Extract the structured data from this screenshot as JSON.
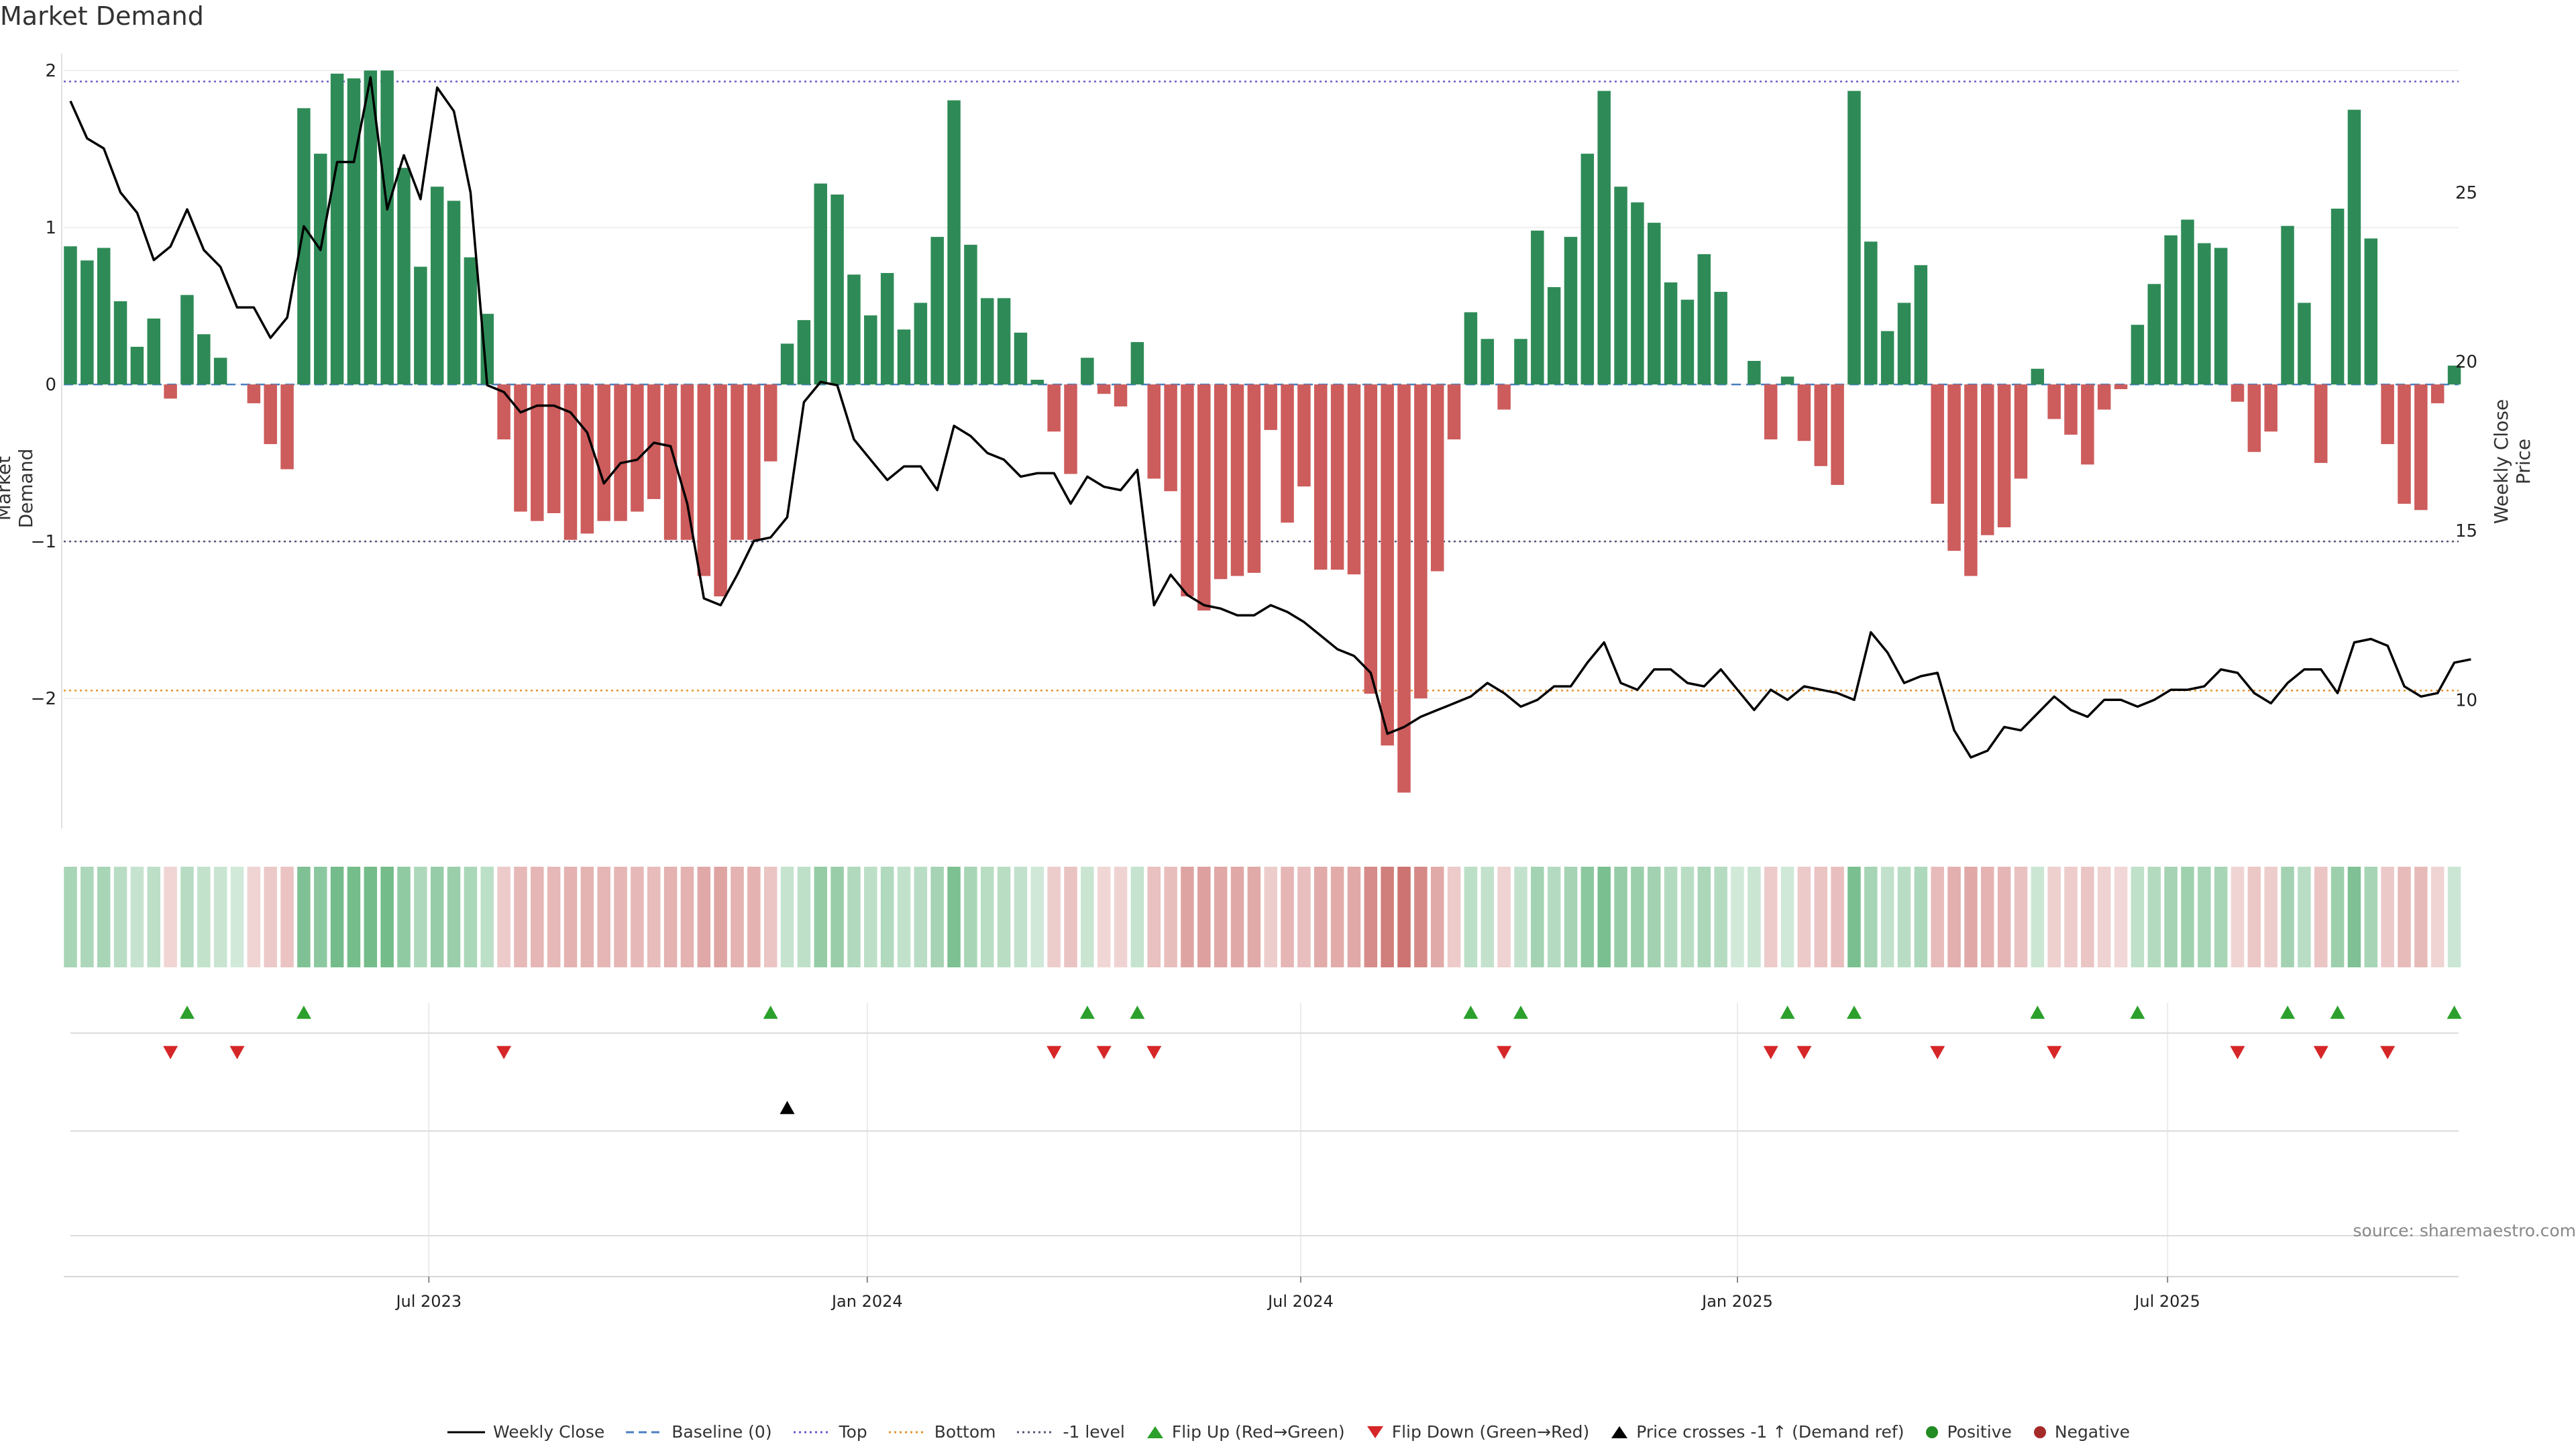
{
  "chart_data": {
    "type": "bar",
    "title": "Market Demand",
    "ylabel_left": "Market Demand",
    "ylabel_right": "Weekly Close Price",
    "ylim_left": [
      -2.85,
      2.15
    ],
    "ylim_right": [
      6.1,
      29.3
    ],
    "left_ticks": [
      2,
      1,
      0,
      -1,
      -2
    ],
    "left_tick_labels": [
      "2",
      "1",
      "0",
      "−1",
      "−2"
    ],
    "right_ticks": [
      25,
      20,
      15,
      10
    ],
    "right_tick_labels": [
      "25",
      "20",
      "15",
      "10"
    ],
    "x_tick_labels": [
      "Jul 2023",
      "Jan 2024",
      "Jul 2024",
      "Jan 2025",
      "Jul 2025"
    ],
    "x_tick_index": [
      21.5,
      47.8,
      73.8,
      100,
      125.8
    ],
    "reference_lines": {
      "top": 1.93,
      "minus_one": -1.0,
      "bottom": -1.95,
      "baseline": 0
    },
    "demand": [
      0.88,
      0.79,
      0.87,
      0.53,
      0.24,
      0.42,
      -0.09,
      0.57,
      0.32,
      0.17,
      0.0,
      -0.12,
      -0.38,
      -0.54,
      1.76,
      1.47,
      1.98,
      1.95,
      2.0,
      2.0,
      1.38,
      0.75,
      1.26,
      1.17,
      0.81,
      0.45,
      -0.35,
      -0.81,
      -0.87,
      -0.82,
      -0.99,
      -0.95,
      -0.87,
      -0.87,
      -0.81,
      -0.73,
      -0.99,
      -0.99,
      -1.22,
      -1.35,
      -0.99,
      -0.99,
      -0.49,
      0.26,
      0.41,
      1.28,
      1.21,
      0.7,
      0.44,
      0.71,
      0.35,
      0.52,
      0.94,
      1.81,
      0.89,
      0.55,
      0.55,
      0.33,
      0.03,
      -0.3,
      -0.57,
      0.17,
      -0.06,
      -0.14,
      0.27,
      -0.6,
      -0.68,
      -1.35,
      -1.44,
      -1.24,
      -1.22,
      -1.2,
      -0.29,
      -0.88,
      -0.65,
      -1.18,
      -1.18,
      -1.21,
      -1.97,
      -2.3,
      -2.6,
      -2.0,
      -1.19,
      -0.35,
      0.46,
      0.29,
      -0.16,
      0.29,
      0.98,
      0.62,
      0.94,
      1.47,
      1.87,
      1.26,
      1.16,
      1.03,
      0.65,
      0.54,
      0.83,
      0.59,
      0.0,
      0.15,
      -0.35,
      0.05,
      -0.36,
      -0.52,
      -0.64,
      1.87,
      0.91,
      0.34,
      0.52,
      0.76,
      -0.76,
      -1.06,
      -1.22,
      -0.96,
      -0.91,
      -0.6,
      0.1,
      -0.22,
      -0.32,
      -0.51,
      -0.16,
      -0.03,
      0.38,
      0.64,
      0.95,
      1.05,
      0.9,
      0.87,
      -0.11,
      -0.43,
      -0.3,
      1.01,
      0.52,
      -0.5,
      1.12,
      1.75,
      0.93,
      -0.38,
      -0.76,
      -0.8,
      -0.12,
      0.12
    ],
    "close": [
      27.7,
      26.6,
      26.3,
      25.0,
      24.4,
      23.0,
      23.4,
      24.5,
      23.3,
      22.8,
      21.6,
      21.6,
      20.7,
      21.3,
      24.0,
      23.3,
      25.9,
      25.9,
      28.4,
      24.5,
      26.1,
      24.8,
      28.1,
      27.4,
      25.0,
      19.3,
      19.1,
      18.5,
      18.7,
      18.7,
      18.5,
      17.9,
      16.4,
      17.0,
      17.1,
      17.6,
      17.5,
      15.8,
      13.0,
      12.8,
      13.7,
      14.7,
      14.8,
      15.4,
      18.8,
      19.4,
      19.3,
      17.7,
      17.1,
      16.5,
      16.9,
      16.9,
      16.2,
      18.1,
      17.8,
      17.3,
      17.1,
      16.6,
      16.7,
      16.7,
      15.8,
      16.6,
      16.3,
      16.2,
      16.8,
      12.8,
      13.7,
      13.1,
      12.8,
      12.7,
      12.5,
      12.5,
      12.8,
      12.6,
      12.3,
      11.9,
      11.5,
      11.3,
      10.8,
      9.0,
      9.2,
      9.5,
      9.7,
      9.9,
      10.1,
      10.5,
      10.2,
      9.8,
      10.0,
      10.4,
      10.4,
      11.1,
      11.7,
      10.5,
      10.3,
      10.9,
      10.9,
      10.5,
      10.4,
      10.9,
      10.3,
      9.7,
      10.3,
      10.0,
      10.4,
      10.3,
      10.2,
      10.0,
      12.0,
      11.4,
      10.5,
      10.7,
      10.8,
      9.1,
      8.3,
      8.5,
      9.2,
      9.1,
      9.6,
      10.1,
      9.7,
      9.5,
      10.0,
      10.0,
      9.8,
      10.0,
      10.3,
      10.3,
      10.4,
      10.9,
      10.8,
      10.2,
      9.9,
      10.5,
      10.9,
      10.9,
      10.2,
      11.7,
      11.8,
      11.6,
      10.4,
      10.1,
      10.2,
      11.1,
      11.2
    ],
    "flip_up_index": [
      7,
      14,
      42,
      61,
      64,
      84,
      87,
      103,
      107,
      118,
      124,
      133,
      136,
      143
    ],
    "flip_down_index": [
      6,
      10,
      26,
      59,
      62,
      65,
      86,
      102,
      104,
      112,
      119,
      130,
      135,
      139
    ],
    "price_cross_index": [
      43
    ],
    "legend": [
      "Weekly Close",
      "Baseline (0)",
      "Top",
      "Bottom",
      "-1 level",
      "Flip Up (Red→Green)",
      "Flip Down (Green→Red)",
      "Price crosses -1 ↑ (Demand ref)",
      "Positive",
      "Negative"
    ],
    "colors": {
      "positive": "#2e8b57",
      "negative": "#cd5c5c",
      "close_line": "#000000",
      "baseline": "#4a7fc1",
      "top": "#6a5acd",
      "bottom": "#e8922d",
      "minus_one": "#555577",
      "flip_up": "#2ca02c",
      "flip_down": "#d62728",
      "price_cross": "#000000",
      "positive_dot": "#228b22",
      "negative_dot": "#a52a2a"
    }
  },
  "source_text": "source: sharemaestro.com"
}
